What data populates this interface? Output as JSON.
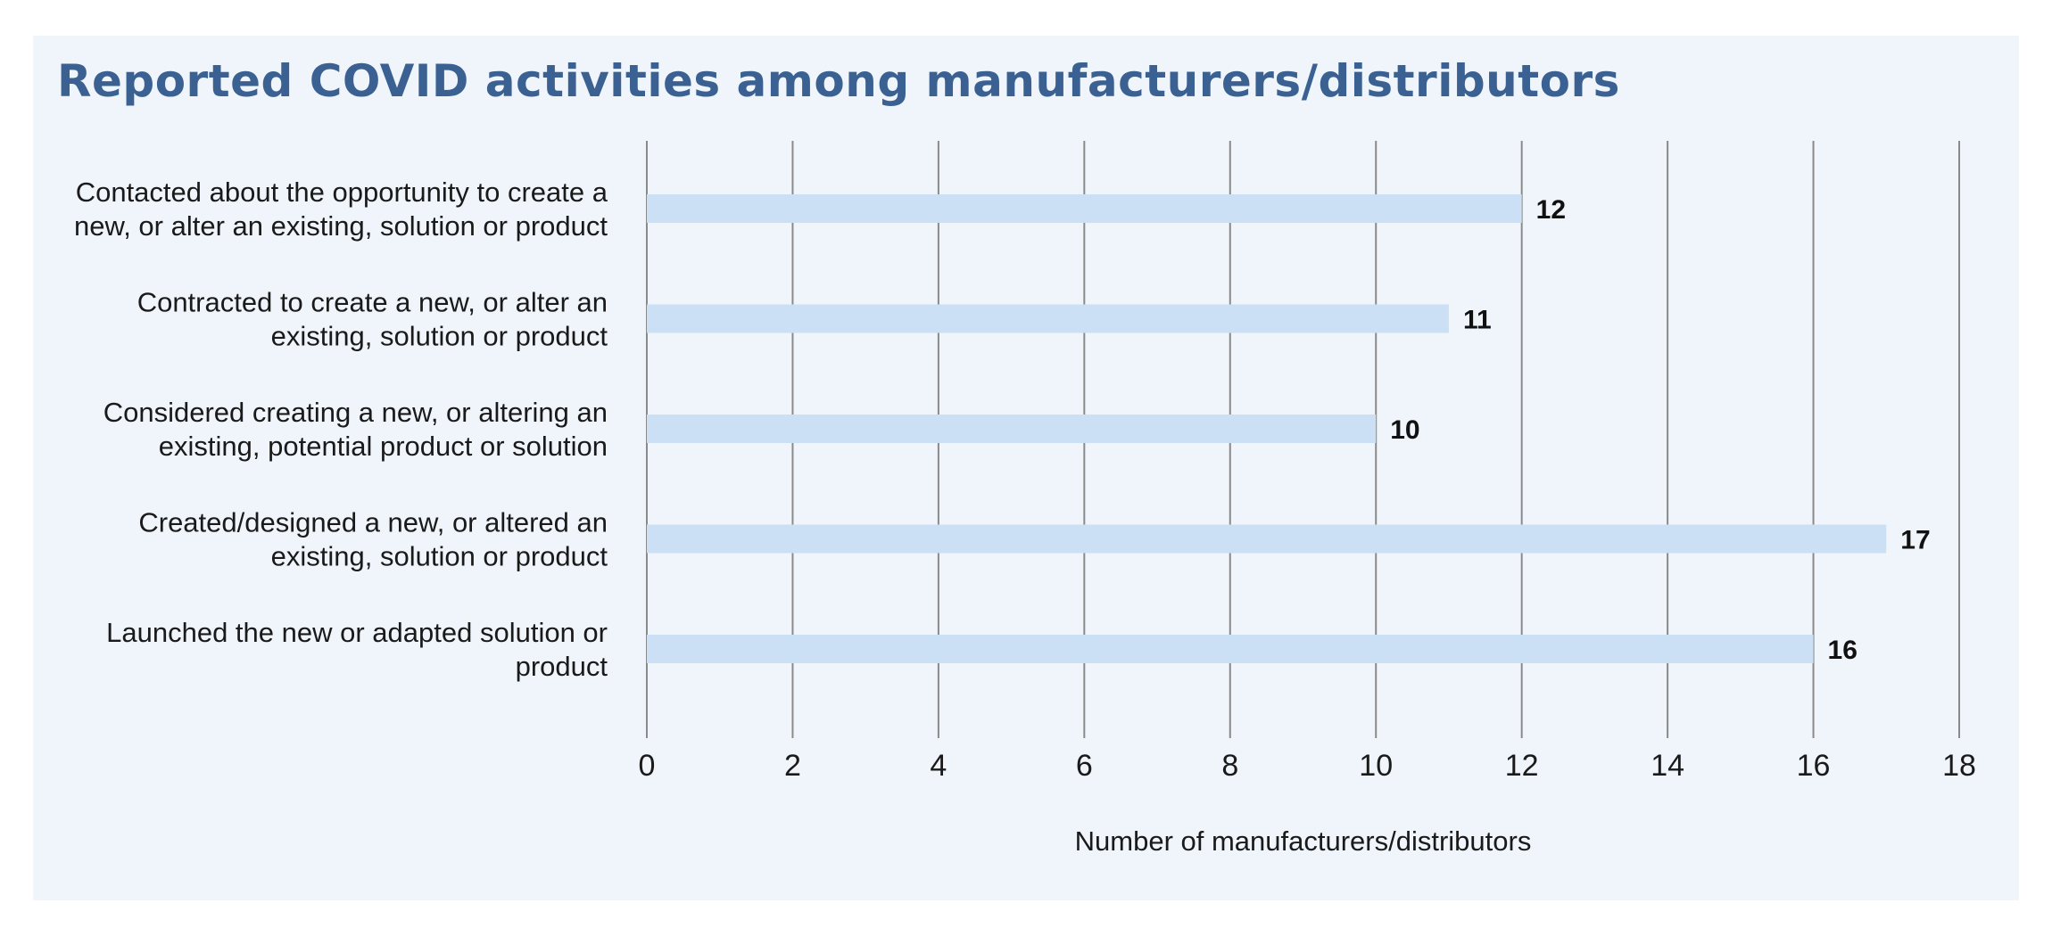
{
  "chart_data": {
    "type": "bar",
    "orientation": "horizontal",
    "title": "Reported COVID activities among manufacturers/distributors",
    "categories": [
      "Contacted about the opportunity to create a new, or alter an existing, solution or product",
      "Contracted to create a new, or alter an existing, solution or product",
      "Considered creating a new, or altering an existing, potential product or solution",
      "Created/designed a new, or altered an existing, solution or product",
      "Launched the new or adapted solution or product"
    ],
    "category_lines": [
      [
        "Contacted about the opportunity to create a",
        "new, or alter an existing, solution or product"
      ],
      [
        "Contracted to create a new, or alter an",
        "existing, solution or product"
      ],
      [
        "Considered creating a new, or altering an",
        "existing, potential product or solution"
      ],
      [
        "Created/designed a new, or altered an",
        "existing, solution or product"
      ],
      [
        "Launched the new or adapted solution or",
        "product"
      ]
    ],
    "values": [
      12,
      11,
      10,
      17,
      16
    ],
    "value_labels": [
      "12",
      "11",
      "10",
      "17",
      "16"
    ],
    "xlabel": "Number of manufacturers/distributors",
    "ylabel": "",
    "xlim": [
      0,
      18
    ],
    "xticks": [
      "0",
      "2",
      "4",
      "6",
      "8",
      "10",
      "12",
      "14",
      "16",
      "18"
    ],
    "grid": true,
    "legend": "none",
    "colors": {
      "bar": "#cce0f5",
      "gridline": "#8a8a8a",
      "title": "#3a6192",
      "panel": "#eff5fb"
    }
  }
}
